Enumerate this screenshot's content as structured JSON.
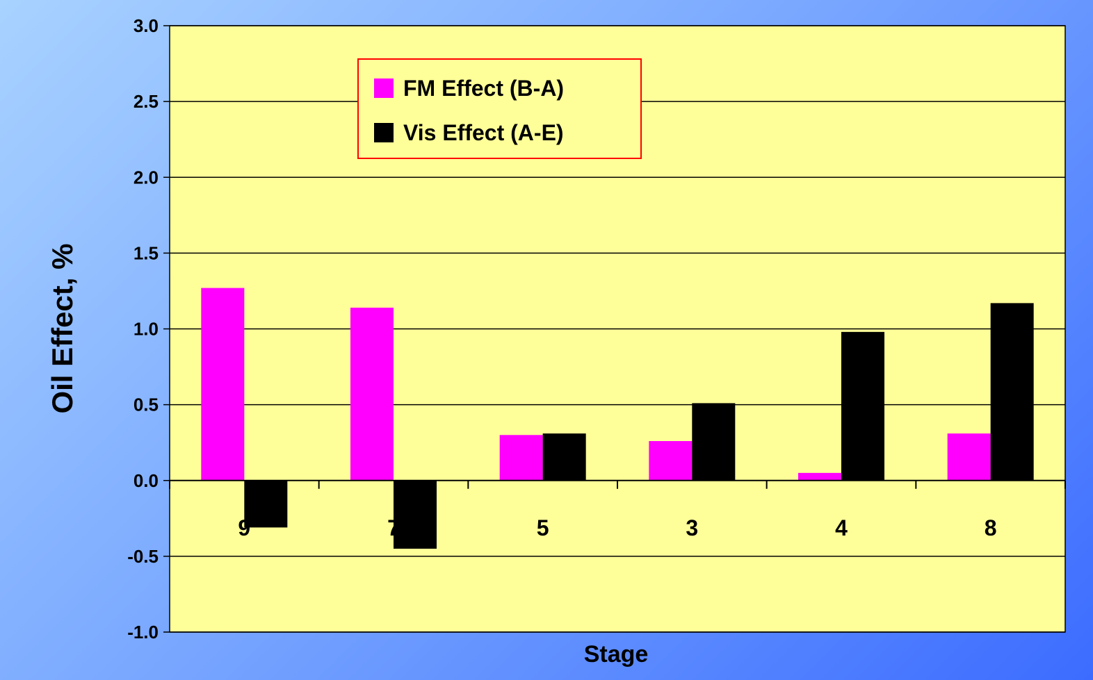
{
  "chart_data": {
    "type": "bar",
    "title": "",
    "xlabel": "Stage",
    "ylabel": "Oil Effect, %",
    "categories": [
      "9",
      "7",
      "5",
      "3",
      "4",
      "8"
    ],
    "series": [
      {
        "name": "FM Effect (B-A)",
        "color": "#ff00ff",
        "values": [
          1.27,
          1.14,
          0.3,
          0.26,
          0.05,
          0.31
        ]
      },
      {
        "name": "Vis Effect (A-E)",
        "color": "#000000",
        "values": [
          -0.31,
          -0.45,
          0.31,
          0.51,
          0.98,
          1.17
        ]
      }
    ],
    "ylim": [
      -1.0,
      3.0
    ],
    "yticks": [
      "3.0",
      "2.5",
      "2.0",
      "1.5",
      "1.0",
      "0.5",
      "0.0",
      "-0.5",
      "-1.0"
    ],
    "grid": true,
    "legend": "top-center",
    "plot_background": "#ffff99",
    "legend_border": "#ff0000"
  }
}
